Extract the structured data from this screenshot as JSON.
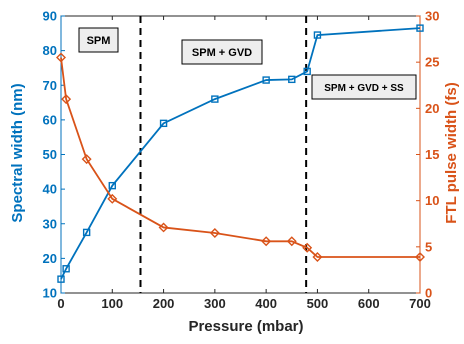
{
  "chart_data": {
    "type": "line",
    "xlabel": "Pressure (mbar)",
    "ylabel_left": "Spectral width (nm)",
    "ylabel_right": "FTL pulse width (fs)",
    "xlim": [
      0,
      700
    ],
    "ylim_left": [
      10,
      90
    ],
    "ylim_right": [
      0,
      30
    ],
    "x_ticks": [
      0,
      100,
      200,
      300,
      400,
      500,
      600,
      700
    ],
    "y_left_ticks": [
      10,
      20,
      30,
      40,
      50,
      60,
      70,
      80,
      90
    ],
    "y_right_ticks": [
      0,
      5,
      10,
      15,
      20,
      25,
      30
    ],
    "grid": false,
    "series": [
      {
        "axis": "left",
        "marker": "square",
        "color": "#0072BD",
        "x": [
          0,
          10,
          50,
          100,
          200,
          300,
          400,
          450,
          480,
          500,
          700
        ],
        "y": [
          14.0,
          17.0,
          27.5,
          41.0,
          59.0,
          66.0,
          71.5,
          71.7,
          74.0,
          84.5,
          86.5
        ]
      },
      {
        "axis": "right",
        "marker": "diamond",
        "color": "#D95319",
        "x": [
          0,
          10,
          50,
          100,
          200,
          300,
          400,
          450,
          480,
          500,
          700
        ],
        "y": [
          25.5,
          21.0,
          14.5,
          10.2,
          7.1,
          6.5,
          5.6,
          5.6,
          4.9,
          3.9,
          3.9
        ]
      }
    ],
    "vlines": [
      155,
      478
    ],
    "region_labels": [
      "SPM",
      "SPM + GVD",
      "SPM + GVD + SS"
    ]
  }
}
